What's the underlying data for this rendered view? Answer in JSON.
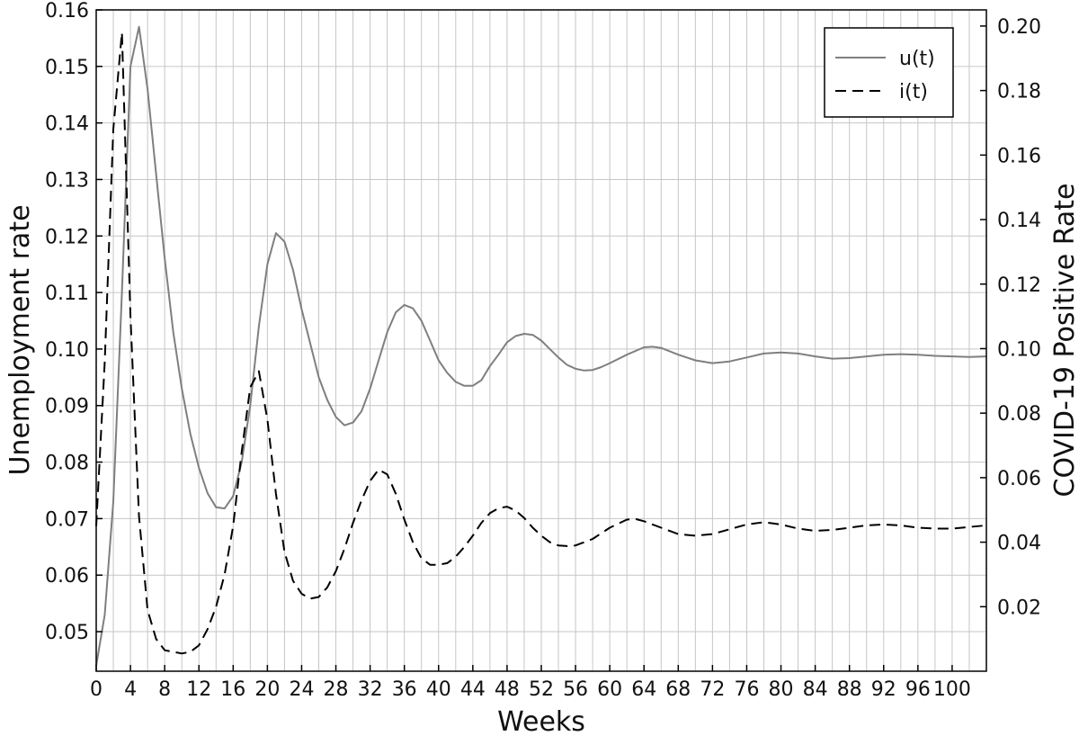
{
  "chart_data": {
    "type": "line",
    "xlabel": "Weeks",
    "ylabel_left": "Unemployment rate",
    "ylabel_right": "COVID-19 Positive Rate",
    "xlim": [
      0,
      104
    ],
    "ylim_left": [
      0.043,
      0.16
    ],
    "ylim_right": [
      0,
      0.205
    ],
    "x_ticks": [
      0,
      4,
      8,
      12,
      16,
      20,
      24,
      28,
      32,
      36,
      40,
      44,
      48,
      52,
      56,
      60,
      64,
      68,
      72,
      76,
      80,
      84,
      88,
      92,
      96,
      100
    ],
    "y_left_ticks": [
      0.05,
      0.06,
      0.07,
      0.08,
      0.09,
      0.1,
      0.11,
      0.12,
      0.13,
      0.14,
      0.15,
      0.16
    ],
    "y_left_tick_labels": [
      "0.05",
      "0.06",
      "0.07",
      "0.08",
      "0.09",
      "0.10",
      "0.11",
      "0.12",
      "0.13",
      "0.14",
      "0.15",
      "0.16"
    ],
    "y_right_ticks": [
      0.02,
      0.04,
      0.06,
      0.08,
      0.1,
      0.12,
      0.14,
      0.16,
      0.18,
      0.2
    ],
    "y_right_tick_labels": [
      "0.02",
      "0.04",
      "0.06",
      "0.08",
      "0.10",
      "0.12",
      "0.14",
      "0.16",
      "0.18",
      "0.20"
    ],
    "grid": true,
    "legend_position": "top-right",
    "series": [
      {
        "name": "u(t)",
        "axis": "left",
        "style": "solid",
        "color": "#7f7f7f",
        "x": [
          0,
          1,
          2,
          3,
          4,
          5,
          6,
          7,
          8,
          9,
          10,
          11,
          12,
          13,
          14,
          15,
          16,
          17,
          18,
          19,
          20,
          21,
          22,
          23,
          24,
          25,
          26,
          27,
          28,
          29,
          30,
          31,
          32,
          33,
          34,
          35,
          36,
          37,
          38,
          39,
          40,
          41,
          42,
          43,
          44,
          45,
          46,
          47,
          48,
          49,
          50,
          51,
          52,
          53,
          54,
          55,
          56,
          57,
          58,
          59,
          60,
          62,
          64,
          65,
          66,
          68,
          70,
          72,
          74,
          76,
          78,
          80,
          82,
          84,
          86,
          88,
          90,
          92,
          94,
          96,
          98,
          100,
          102,
          104
        ],
        "y": [
          0.044,
          0.053,
          0.073,
          0.11,
          0.15,
          0.157,
          0.146,
          0.131,
          0.116,
          0.103,
          0.093,
          0.085,
          0.079,
          0.0745,
          0.072,
          0.0718,
          0.074,
          0.08,
          0.09,
          0.104,
          0.115,
          0.1205,
          0.119,
          0.114,
          0.107,
          0.101,
          0.095,
          0.091,
          0.088,
          0.0865,
          0.087,
          0.089,
          0.093,
          0.098,
          0.103,
          0.1065,
          0.1078,
          0.1072,
          0.105,
          0.1015,
          0.098,
          0.0958,
          0.0942,
          0.0935,
          0.0935,
          0.0945,
          0.097,
          0.099,
          0.1012,
          0.1023,
          0.1027,
          0.1025,
          0.1015,
          0.1,
          0.0985,
          0.0972,
          0.0965,
          0.0962,
          0.0963,
          0.0968,
          0.0975,
          0.099,
          0.1003,
          0.1004,
          0.1002,
          0.099,
          0.098,
          0.0975,
          0.0978,
          0.0985,
          0.0992,
          0.0994,
          0.0992,
          0.0987,
          0.0983,
          0.0984,
          0.0987,
          0.099,
          0.0991,
          0.099,
          0.0988,
          0.0987,
          0.0986,
          0.0987
        ]
      },
      {
        "name": "i(t)",
        "axis": "right",
        "style": "dashed",
        "color": "#000000",
        "x": [
          0,
          1,
          2,
          3,
          4,
          5,
          6,
          7,
          8,
          9,
          10,
          11,
          12,
          13,
          14,
          15,
          16,
          17,
          18,
          19,
          20,
          21,
          22,
          23,
          24,
          25,
          26,
          27,
          28,
          29,
          30,
          31,
          32,
          33,
          34,
          35,
          36,
          37,
          38,
          39,
          40,
          41,
          42,
          43,
          44,
          45,
          46,
          47,
          48,
          49,
          50,
          51,
          52,
          53,
          54,
          55,
          56,
          58,
          60,
          62,
          63,
          64,
          66,
          68,
          70,
          72,
          74,
          76,
          78,
          80,
          82,
          84,
          86,
          88,
          90,
          92,
          94,
          96,
          98,
          100,
          102,
          104
        ],
        "y": [
          0.045,
          0.096,
          0.168,
          0.198,
          0.11,
          0.048,
          0.019,
          0.01,
          0.0065,
          0.006,
          0.0055,
          0.006,
          0.008,
          0.013,
          0.02,
          0.03,
          0.045,
          0.068,
          0.088,
          0.093,
          0.078,
          0.055,
          0.037,
          0.028,
          0.024,
          0.0225,
          0.023,
          0.026,
          0.031,
          0.038,
          0.046,
          0.053,
          0.059,
          0.0625,
          0.061,
          0.055,
          0.047,
          0.04,
          0.035,
          0.033,
          0.033,
          0.0335,
          0.0355,
          0.0385,
          0.042,
          0.046,
          0.049,
          0.0505,
          0.051,
          0.0498,
          0.0475,
          0.0445,
          0.042,
          0.04,
          0.039,
          0.0388,
          0.039,
          0.041,
          0.0445,
          0.047,
          0.0472,
          0.0465,
          0.0445,
          0.0425,
          0.042,
          0.0425,
          0.044,
          0.0455,
          0.0462,
          0.0455,
          0.0442,
          0.0435,
          0.0438,
          0.0445,
          0.0452,
          0.0455,
          0.0452,
          0.0445,
          0.0442,
          0.0442,
          0.0447,
          0.0452
        ]
      }
    ]
  }
}
